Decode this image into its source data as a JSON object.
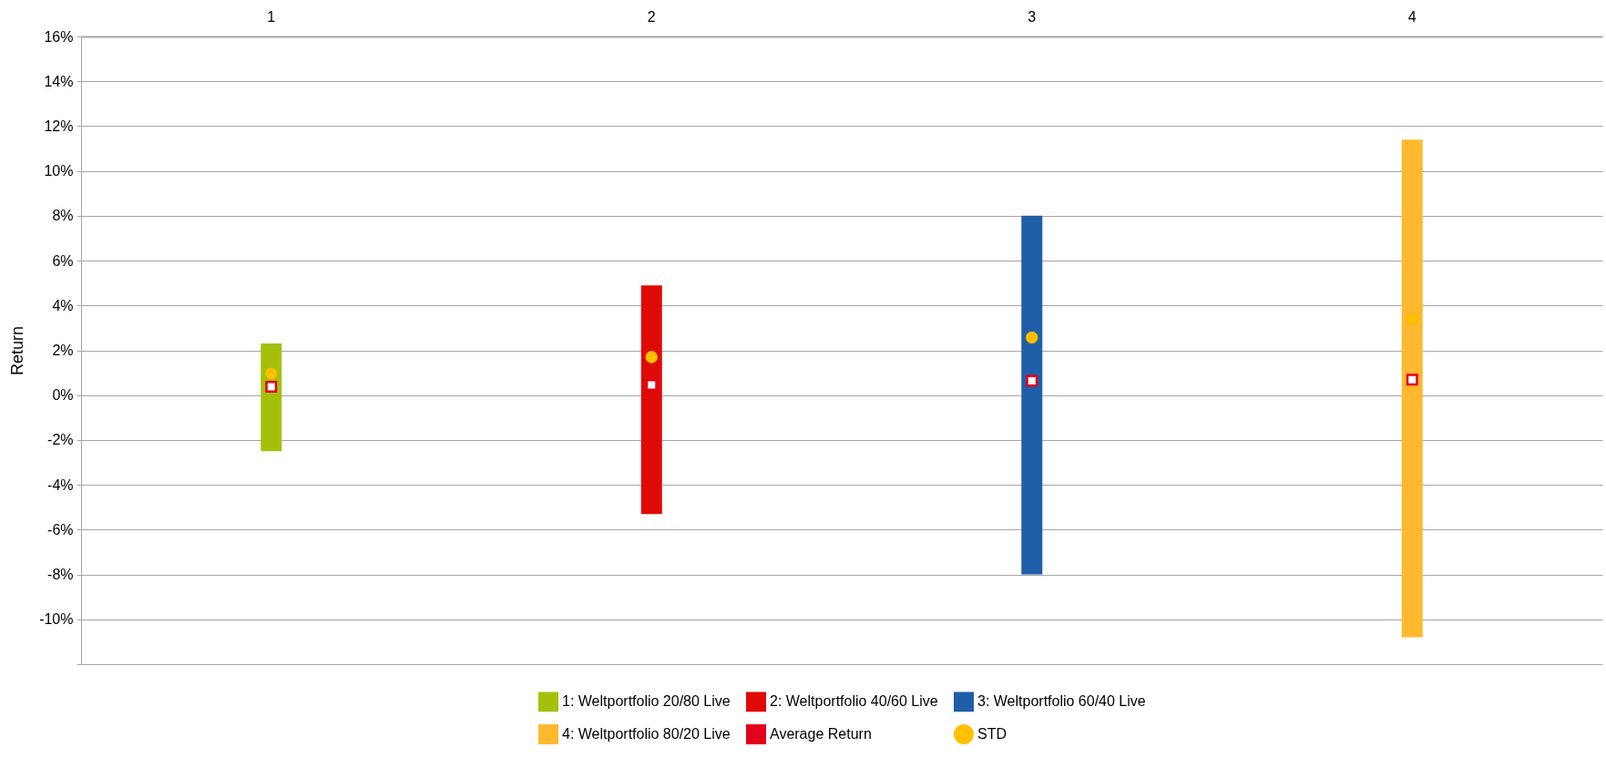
{
  "chart_data": {
    "type": "bar",
    "ylabel": "Return",
    "categories": [
      "1",
      "2",
      "3",
      "4"
    ],
    "ylim": [
      -12,
      16
    ],
    "yticks": [
      {
        "value": -12,
        "label": null
      },
      {
        "value": -10,
        "label": "-10%"
      },
      {
        "value": -8,
        "label": "-8%"
      },
      {
        "value": -6,
        "label": "-6%"
      },
      {
        "value": -4,
        "label": "-4%"
      },
      {
        "value": -2,
        "label": "-2%"
      },
      {
        "value": 0,
        "label": "0%"
      },
      {
        "value": 2,
        "label": "2%"
      },
      {
        "value": 4,
        "label": "4%"
      },
      {
        "value": 6,
        "label": "6%"
      },
      {
        "value": 8,
        "label": "8%"
      },
      {
        "value": 10,
        "label": "10%"
      },
      {
        "value": 12,
        "label": "12%"
      },
      {
        "value": 14,
        "label": "14%"
      },
      {
        "value": 16,
        "label": "16%"
      }
    ],
    "grid": "y",
    "legend": "bottom",
    "series": [
      {
        "name": "1: Weltportfolio 20/80 Live",
        "color": "#a5c00b",
        "values": [
          4.8,
          null,
          null,
          null
        ],
        "base": [
          -2.5,
          null,
          null,
          null
        ]
      },
      {
        "name": "2: Weltportfolio 40/60 Live",
        "color": "#e00a05",
        "values": [
          null,
          10.2,
          null,
          null
        ],
        "base": [
          null,
          -5.3,
          null,
          null
        ]
      },
      {
        "name": "3: Weltportfolio 60/40 Live",
        "color": "#1f5fa8",
        "values": [
          null,
          null,
          16,
          null
        ],
        "base": [
          null,
          null,
          -8,
          null
        ]
      },
      {
        "name": "4: Weltportfolio 80/20 Live",
        "color": "#ffb92e",
        "values": [
          null,
          null,
          null,
          22.2
        ],
        "base": [
          null,
          null,
          null,
          -10.8
        ]
      },
      {
        "name": "Average Return",
        "type": "scatter",
        "marker": "square",
        "color": "#e3001b",
        "values": [
          0.37,
          0.46,
          0.64,
          0.69
        ]
      },
      {
        "name": "STD",
        "type": "scatter",
        "marker": "circle",
        "color": "#ffc000",
        "values": [
          0.96,
          1.7,
          2.57,
          3.4
        ]
      }
    ]
  }
}
